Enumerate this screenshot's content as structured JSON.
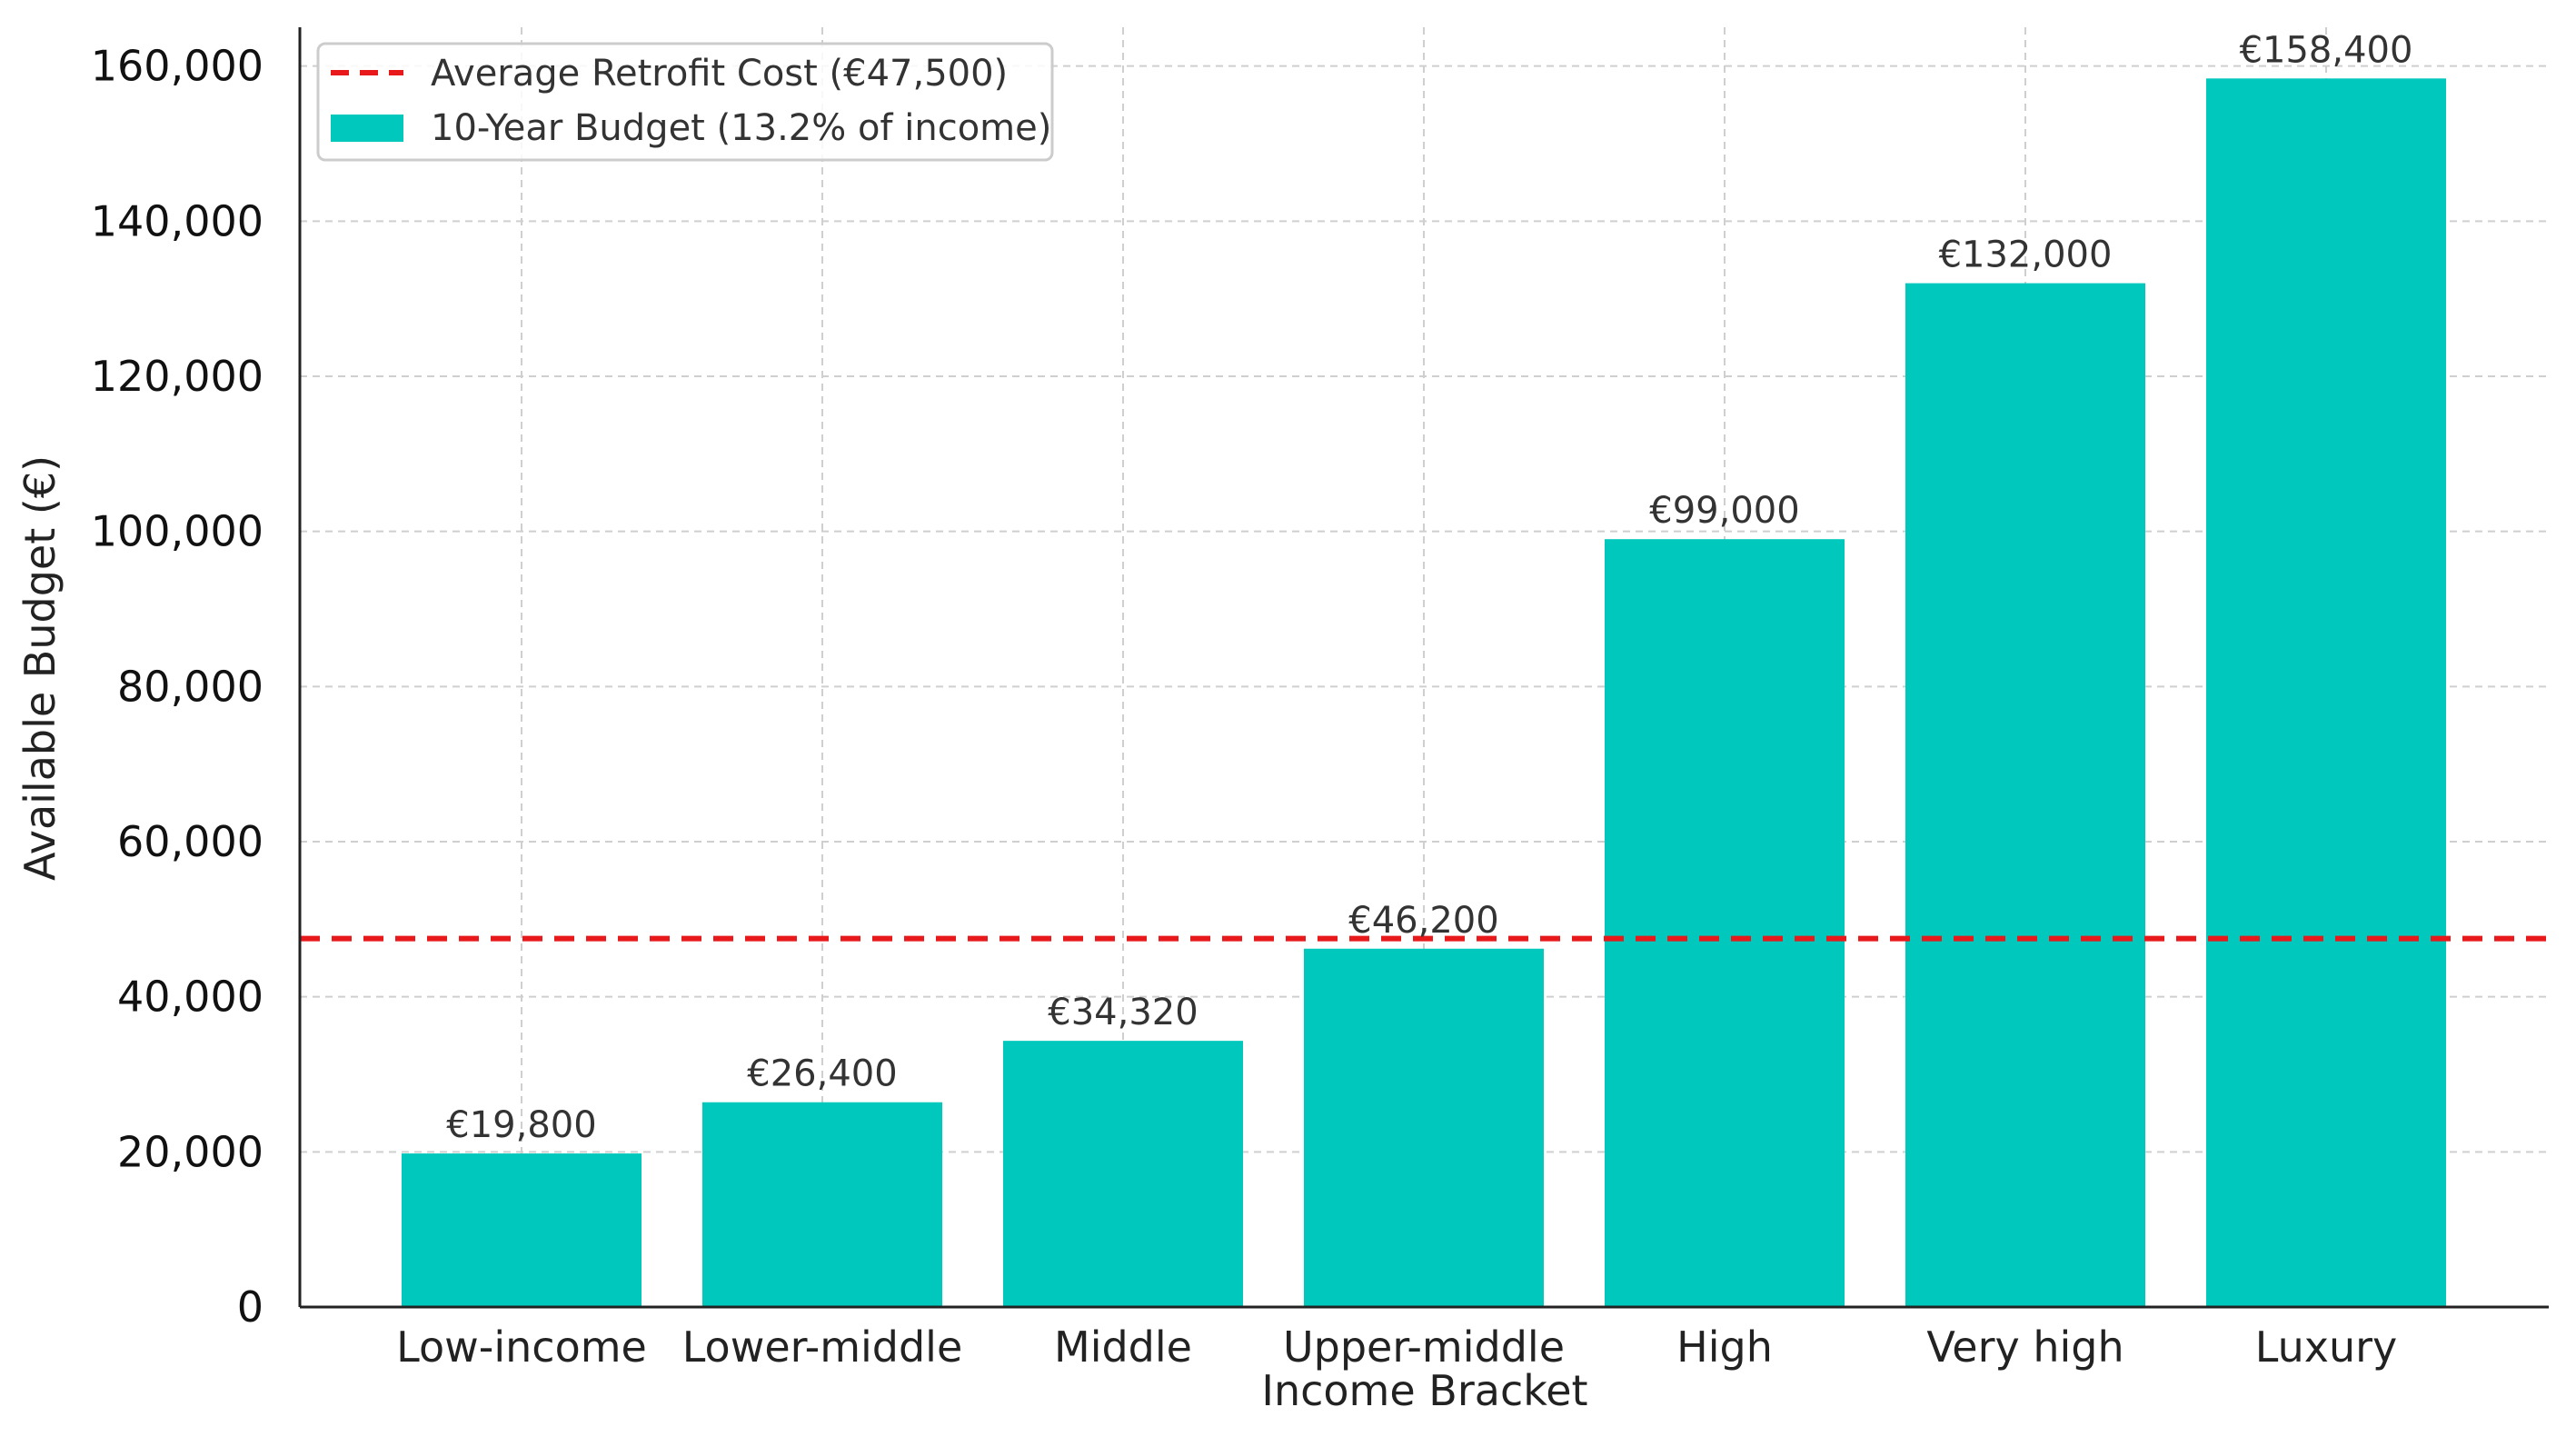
{
  "chart_data": {
    "type": "bar",
    "title": "",
    "xlabel": "Income Bracket",
    "ylabel": "Available Budget (€)",
    "categories": [
      "Low-income",
      "Lower-middle",
      "Middle",
      "Upper-middle",
      "High",
      "Very high",
      "Luxury"
    ],
    "values": [
      19800,
      26400,
      34320,
      46200,
      99000,
      132000,
      158400
    ],
    "value_labels": [
      "€19,800",
      "€26,400",
      "€34,320",
      "€46,200",
      "€99,000",
      "€132,000",
      "€158,400"
    ],
    "ylim": [
      0,
      165000
    ],
    "yticks": [
      0,
      20000,
      40000,
      60000,
      80000,
      100000,
      120000,
      140000,
      160000
    ],
    "ytick_labels": [
      "0",
      "20,000",
      "40,000",
      "60,000",
      "80,000",
      "100,000",
      "120,000",
      "140,000",
      "160,000"
    ],
    "grid": true,
    "reference_line": {
      "value": 47500,
      "label": "Average Retrofit Cost (€47,500)",
      "style": "dashed",
      "color": "#e8191b"
    },
    "series": [
      {
        "name": "10-Year Budget (13.2% of income)",
        "color": "#00c8bc",
        "values": [
          19800,
          26400,
          34320,
          46200,
          99000,
          132000,
          158400
        ]
      }
    ],
    "legend": {
      "position": "top-left",
      "entries": [
        "Average Retrofit Cost (€47,500)",
        "10-Year Budget (13.2% of income)"
      ]
    }
  }
}
